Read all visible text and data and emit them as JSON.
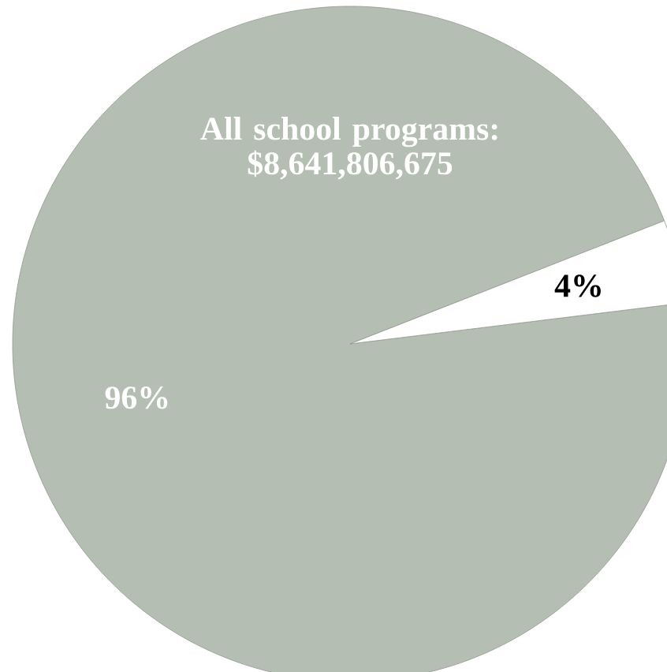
{
  "chart_data": {
    "type": "pie",
    "categories": [
      "All school programs: $8,641,806,675",
      null
    ],
    "values": [
      96,
      4
    ],
    "colors": [
      "#b5beb2",
      "#ffffff"
    ],
    "value_labels": [
      "96%",
      "4%"
    ]
  }
}
